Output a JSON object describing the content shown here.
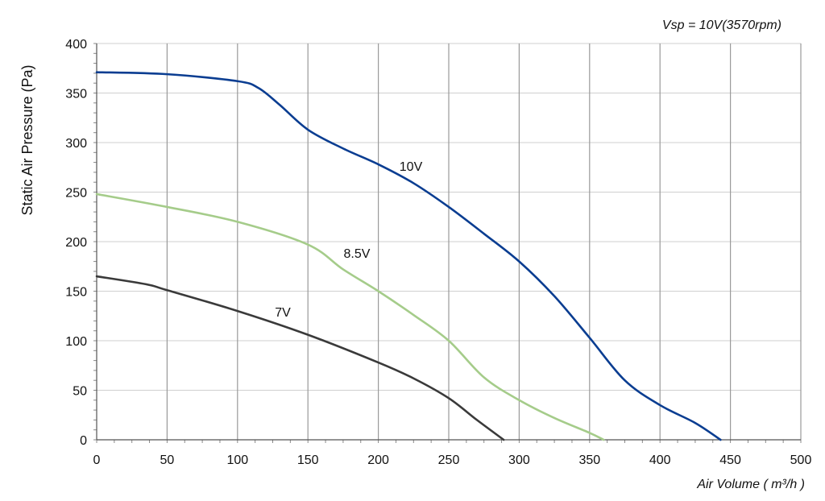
{
  "chart_data": {
    "type": "line",
    "annotation": "Vsp = 10V(3570rpm)",
    "xlabel": "Air Volume ( m³/h )",
    "ylabel": "Static Air Pressure  (Pa)",
    "xlim": [
      0,
      500
    ],
    "ylim": [
      0,
      400
    ],
    "x_ticks": [
      0,
      50,
      100,
      150,
      200,
      250,
      300,
      350,
      400,
      450,
      500
    ],
    "y_ticks": [
      0,
      50,
      100,
      150,
      200,
      250,
      300,
      350,
      400
    ],
    "grid": true,
    "series": [
      {
        "name": "10V",
        "color": "#0a3d91",
        "x": [
          0,
          50,
          100,
          115,
          130,
          150,
          175,
          200,
          225,
          250,
          275,
          300,
          325,
          350,
          375,
          400,
          425,
          443
        ],
        "y": [
          371,
          369,
          362,
          355,
          338,
          313,
          294,
          278,
          259,
          235,
          208,
          180,
          145,
          103,
          60,
          35,
          17,
          0
        ]
      },
      {
        "name": "8.5V",
        "color": "#a5cc8a",
        "x": [
          0,
          50,
          100,
          150,
          175,
          200,
          225,
          250,
          275,
          300,
          325,
          350,
          360
        ],
        "y": [
          248,
          235,
          220,
          197,
          172,
          150,
          126,
          100,
          63,
          40,
          22,
          7,
          0
        ]
      },
      {
        "name": "7V",
        "color": "#3a3a3a",
        "x": [
          0,
          35,
          50,
          100,
          150,
          200,
          225,
          250,
          270,
          289
        ],
        "y": [
          165,
          157,
          151,
          130,
          106,
          78,
          62,
          42,
          20,
          0
        ]
      }
    ]
  }
}
